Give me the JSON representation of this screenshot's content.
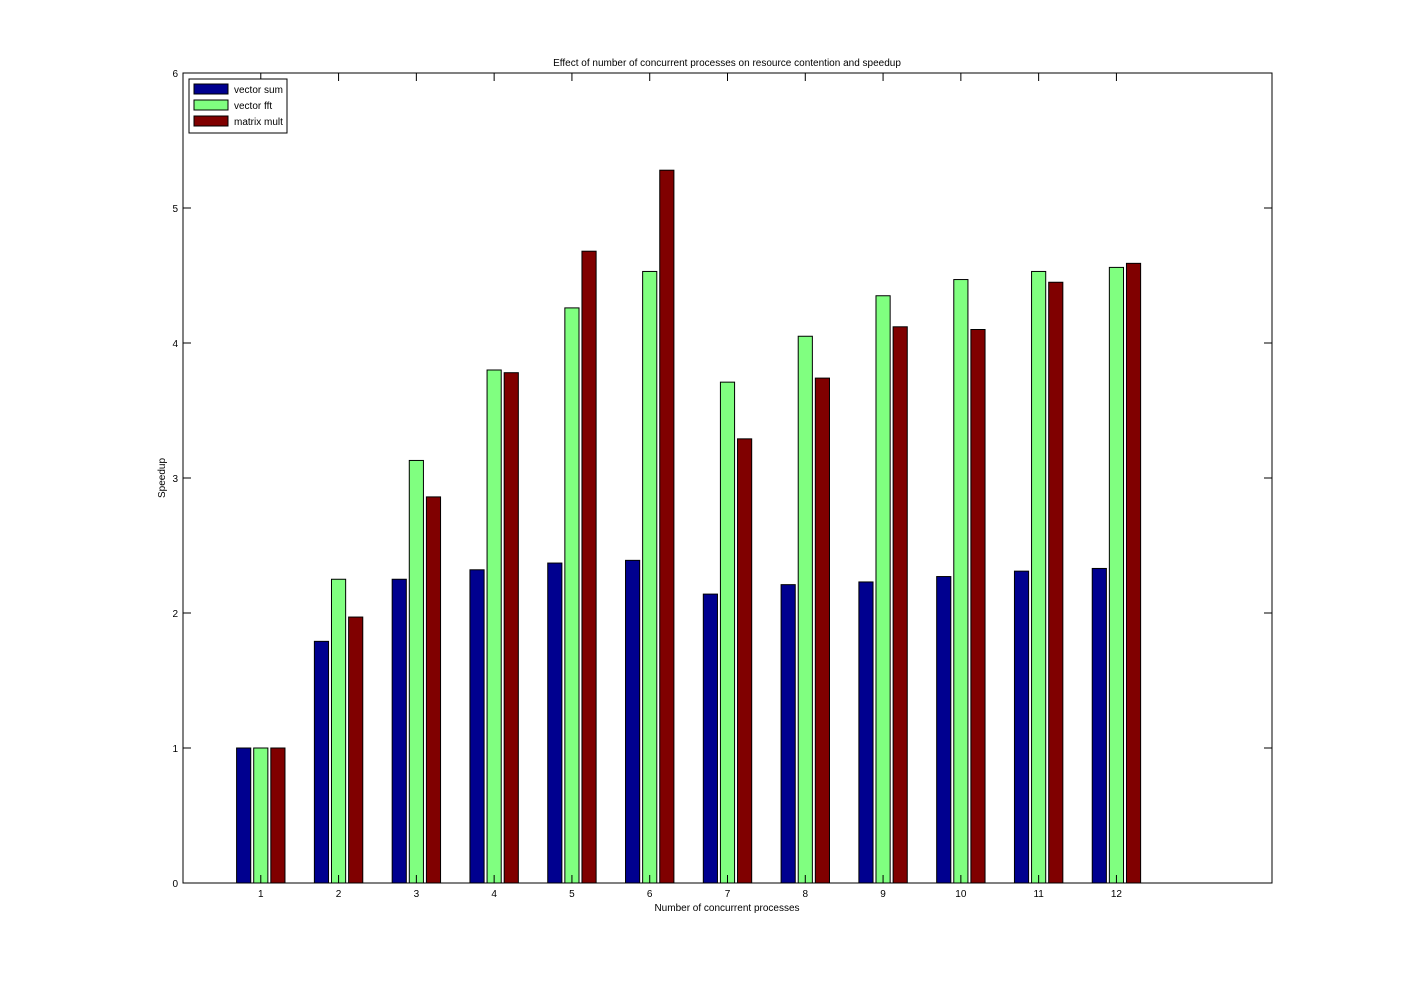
{
  "chart_data": {
    "type": "bar",
    "title": "Effect of number of concurrent processes on resource contention and speedup",
    "xlabel": "Number of concurrent processes",
    "ylabel": "Speedup",
    "categories": [
      "1",
      "2",
      "3",
      "4",
      "5",
      "6",
      "7",
      "8",
      "9",
      "10",
      "11",
      "12"
    ],
    "xlim": [
      0,
      14
    ],
    "ylim": [
      0,
      6
    ],
    "yticks": [
      0,
      1,
      2,
      3,
      4,
      5,
      6
    ],
    "grid": false,
    "legend_position": "top-left",
    "series": [
      {
        "name": "vector sum",
        "color": "#00008f",
        "values": [
          1.0,
          1.79,
          2.25,
          2.32,
          2.37,
          2.39,
          2.14,
          2.21,
          2.23,
          2.27,
          2.31,
          2.33
        ]
      },
      {
        "name": "vector fft",
        "color": "#80ff80",
        "values": [
          1.0,
          2.25,
          3.13,
          3.8,
          4.26,
          4.53,
          3.71,
          4.05,
          4.35,
          4.47,
          4.53,
          4.56
        ]
      },
      {
        "name": "matrix mult",
        "color": "#800000",
        "values": [
          1.0,
          1.97,
          2.86,
          3.78,
          4.68,
          5.28,
          3.29,
          3.74,
          4.12,
          4.1,
          4.45,
          4.59
        ]
      }
    ]
  }
}
